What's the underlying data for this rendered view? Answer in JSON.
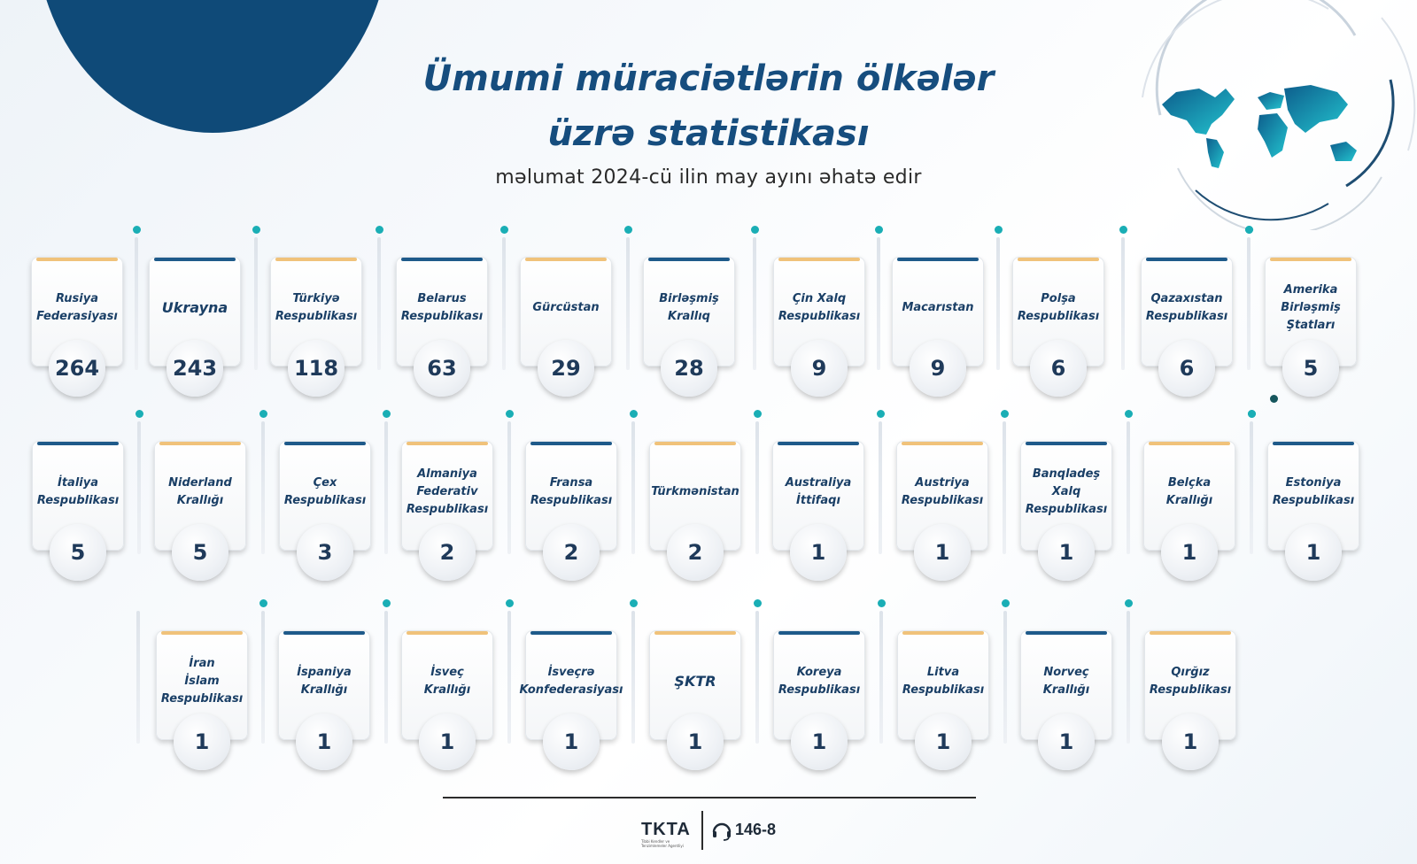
{
  "header": {
    "title_line1": "Ümumi müraciətlərin ölkələr",
    "title_line2": "üzrə statistikası",
    "subtitle": "məlumat 2024-cü ilin may ayını əhatə edir"
  },
  "countries": [
    {
      "name": "Rusiya\nFederasiyası",
      "count": "264"
    },
    {
      "name": "Ukrayna",
      "count": "243"
    },
    {
      "name": "Türkiyə\nRespublikası",
      "count": "118"
    },
    {
      "name": "Belarus\nRespublikası",
      "count": "63"
    },
    {
      "name": "Gürcüstan",
      "count": "29"
    },
    {
      "name": "Birləşmiş\nKrallıq",
      "count": "28"
    },
    {
      "name": "Çin Xalq\nRespublikası",
      "count": "9"
    },
    {
      "name": "Macarıstan",
      "count": "9"
    },
    {
      "name": "Polşa\nRespublikası",
      "count": "6"
    },
    {
      "name": "Qazaxıstan\nRespublikası",
      "count": "6"
    },
    {
      "name": "Amerika\nBirləşmiş\nŞtatları",
      "count": "5"
    },
    {
      "name": "İtaliya\nRespublikası",
      "count": "5"
    },
    {
      "name": "Niderland\nKrallığı",
      "count": "5"
    },
    {
      "name": "Çex\nRespublikası",
      "count": "3"
    },
    {
      "name": "Almaniya\nFederativ\nRespublikası",
      "count": "2"
    },
    {
      "name": "Fransa\nRespublikası",
      "count": "2"
    },
    {
      "name": "Türkmənistan",
      "count": "2"
    },
    {
      "name": "Australiya\nİttifaqı",
      "count": "1"
    },
    {
      "name": "Austriya\nRespublikası",
      "count": "1"
    },
    {
      "name": "Banqladeş\nXalq\nRespublikası",
      "count": "1"
    },
    {
      "name": "Belçka\nKrallığı",
      "count": "1"
    },
    {
      "name": "Estoniya\nRespublikası",
      "count": "1"
    },
    {
      "name": "İran\nİslam\nRespublikası",
      "count": "1"
    },
    {
      "name": "İspaniya\nKrallığı",
      "count": "1"
    },
    {
      "name": "İsveç\nKrallığı",
      "count": "1"
    },
    {
      "name": "İsveçrə\nKonfederasiyası",
      "count": "1"
    },
    {
      "name": "ŞKTR",
      "count": "1"
    },
    {
      "name": "Koreya\nRespublikası",
      "count": "1"
    },
    {
      "name": "Litva\nRespublikası",
      "count": "1"
    },
    {
      "name": "Norveç\nKrallığı",
      "count": "1"
    },
    {
      "name": "Qırğız\nRespublikası",
      "count": "1"
    }
  ],
  "footer": {
    "logo": "TKTA",
    "logo_tagline": "Tibbi Kendler ve Tenzimlemeler Agentliyi",
    "hotline": "146-8"
  },
  "colors": {
    "title": "#164d7e",
    "blob": "#0f4a78",
    "accent_gold": "#f0c27a",
    "accent_blue": "#1e5a8a",
    "dot": "#1aaeb5"
  }
}
